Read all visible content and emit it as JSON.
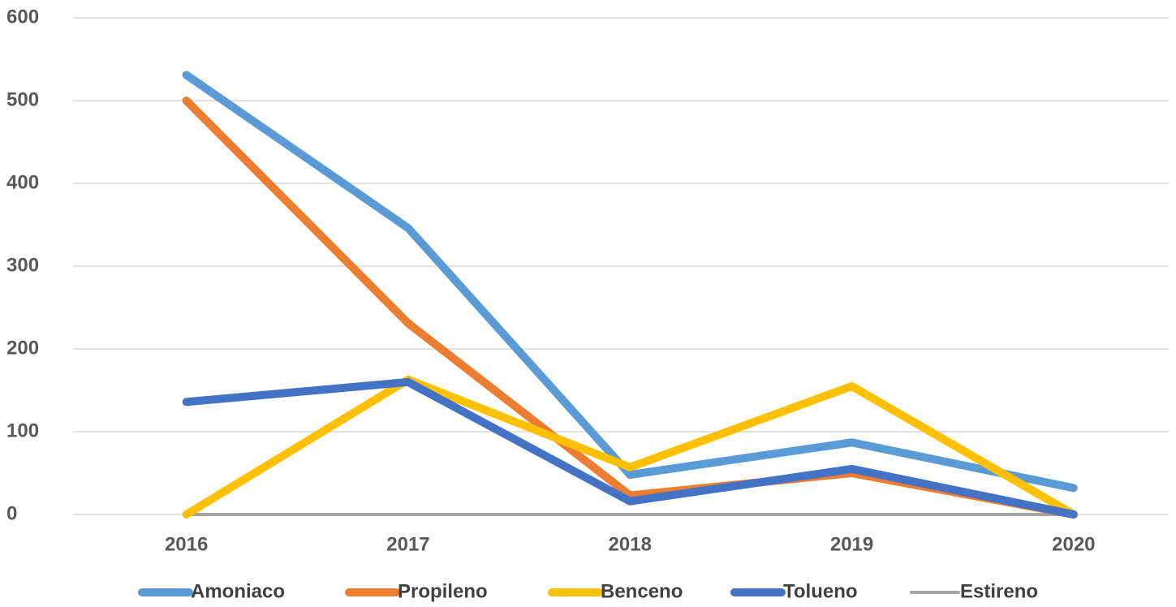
{
  "chart_data": {
    "type": "line",
    "categories": [
      "2016",
      "2017",
      "2018",
      "2019",
      "2020"
    ],
    "series": [
      {
        "name": "Estireno",
        "color": "#a5a5a5",
        "line_width": 4,
        "values": [
          0,
          0,
          0,
          0,
          0
        ]
      },
      {
        "name": "Amoniaco",
        "color": "#5b9bd5",
        "line_width": 10,
        "values": [
          531,
          346,
          48,
          87,
          32
        ]
      },
      {
        "name": "Propileno",
        "color": "#ed7d31",
        "line_width": 10,
        "values": [
          500,
          231,
          23,
          50,
          0
        ]
      },
      {
        "name": "Benceno",
        "color": "#ffc000",
        "line_width": 10,
        "values": [
          0,
          163,
          57,
          155,
          0
        ]
      },
      {
        "name": "Tolueno",
        "color": "#4472c4",
        "line_width": 10,
        "values": [
          136,
          160,
          16,
          55,
          0
        ]
      }
    ],
    "legend_order": [
      1,
      2,
      3,
      4,
      0
    ],
    "ylim": [
      0,
      600
    ],
    "yticks": [
      0,
      100,
      200,
      300,
      400,
      500,
      600
    ],
    "grid": true,
    "legend": "bottom"
  }
}
